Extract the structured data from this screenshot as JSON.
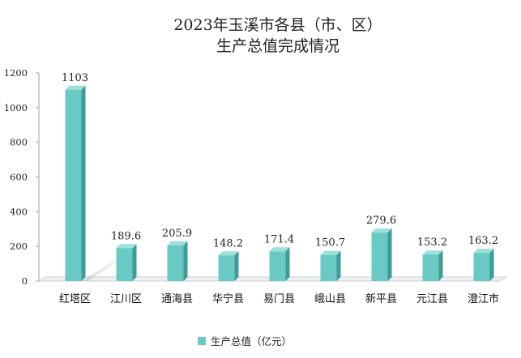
{
  "chart_data": {
    "type": "bar",
    "title_lines": [
      "2023年玉溪市各县（市、区）",
      "生产总值完成情况"
    ],
    "categories": [
      "红塔区",
      "江川区",
      "通海县",
      "华宁县",
      "易门县",
      "峨山县",
      "新平县",
      "元江县",
      "澄江市"
    ],
    "series": [
      {
        "name": "生产总值（亿元）",
        "values": [
          1103,
          189.6,
          205.9,
          148.2,
          171.4,
          150.7,
          279.6,
          153.2,
          163.2
        ],
        "labels": [
          "1103",
          "189.6",
          "205.9",
          "148.2",
          "171.4",
          "150.7",
          "279.6",
          "153.2",
          "163.2"
        ]
      }
    ],
    "ylim": [
      0,
      1200
    ],
    "yticks": [
      "0",
      "200",
      "400",
      "600",
      "800",
      "1000",
      "1200"
    ],
    "grid": false,
    "legend_position": "bottom",
    "colors": {
      "front": "#69c9c3",
      "side": "#3e9c97",
      "top": "#9be0db",
      "axis": "#9aa4ad",
      "floor": "#c8d0d6"
    }
  }
}
